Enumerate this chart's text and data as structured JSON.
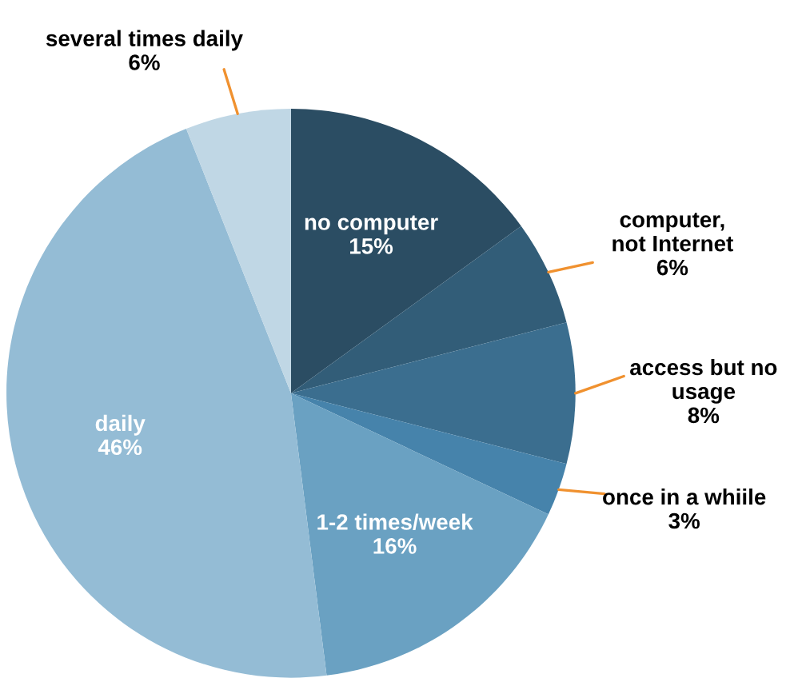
{
  "chart_data": {
    "type": "pie",
    "categories": [
      "no computer",
      "computer,\nnot Internet",
      "access but no\nusage",
      "once in a whiile",
      "1-2 times/week",
      "daily",
      "several times daily"
    ],
    "values": [
      15,
      6,
      8,
      3,
      16,
      46,
      6
    ],
    "value_labels": [
      "15%",
      "6%",
      "8%",
      "3%",
      "16%",
      "46%",
      "6%"
    ],
    "colors": [
      "#2b4d63",
      "#325d78",
      "#3b6e8f",
      "#4683ab",
      "#6aa1c2",
      "#94bcd5",
      "#c0d7e5"
    ]
  }
}
